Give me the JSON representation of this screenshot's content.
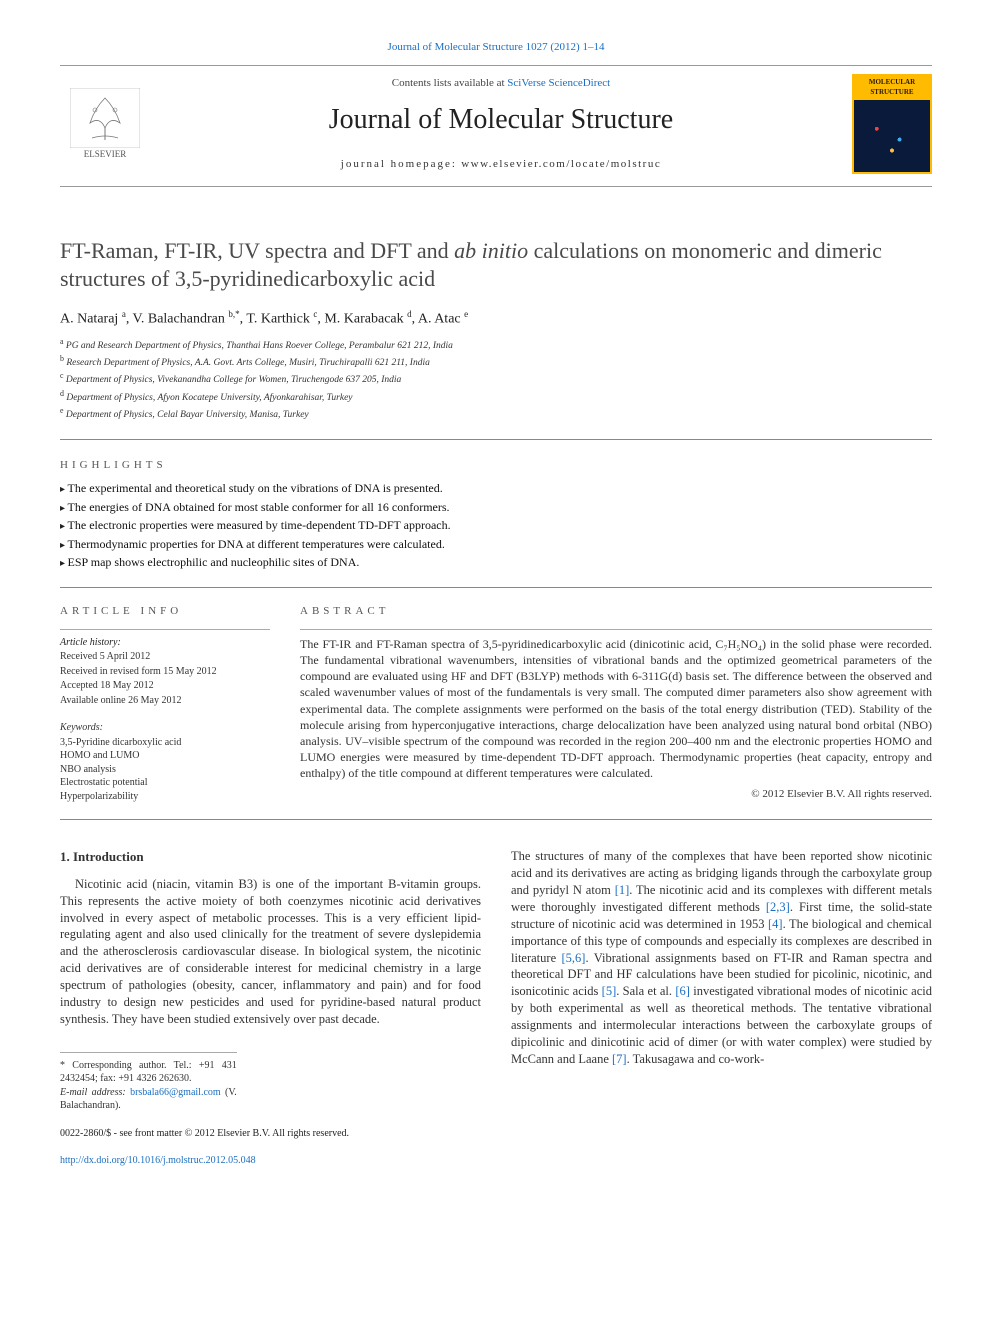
{
  "citation": {
    "text": "Journal of Molecular Structure 1027 (2012) 1–14",
    "href": "#"
  },
  "banner": {
    "contents_prefix": "Contents lists available at ",
    "contents_link_text": "SciVerse ScienceDirect",
    "journal_name": "Journal of Molecular Structure",
    "homepage_label": "journal homepage:",
    "homepage_url": "www.elsevier.com/locate/molstruc",
    "publisher_name": "ELSEVIER",
    "cover_label": "MOLECULAR STRUCTURE"
  },
  "paper": {
    "title_part1": "FT-Raman, FT-IR, UV spectra and DFT and ",
    "title_italic": "ab initio",
    "title_part2": " calculations on monomeric and dimeric structures of 3,5-pyridinedicarboxylic acid",
    "authors_html": "A. Nataraj <sup>a</sup>, V. Balachandran <sup>b,</sup><sup class=\"star\">*</sup>, T. Karthick <sup>c</sup>, M. Karabacak <sup>d</sup>, A. Atac <sup>e</sup>",
    "affiliations": [
      {
        "sup": "a",
        "text": "PG and Research Department of Physics, Thanthai Hans Roever College, Perambalur 621 212, India"
      },
      {
        "sup": "b",
        "text": "Research Department of Physics, A.A. Govt. Arts College, Musiri, Tiruchirapalli 621 211, India"
      },
      {
        "sup": "c",
        "text": "Department of Physics, Vivekanandha College for Women, Tiruchengode 637 205, India"
      },
      {
        "sup": "d",
        "text": "Department of Physics, Afyon Kocatepe University, Afyonkarahisar, Turkey"
      },
      {
        "sup": "e",
        "text": "Department of Physics, Celal Bayar University, Manisa, Turkey"
      }
    ]
  },
  "highlights": {
    "heading": "HIGHLIGHTS",
    "items": [
      "The experimental and theoretical study on the vibrations of DNA is presented.",
      "The energies of DNA obtained for most stable conformer for all 16 conformers.",
      "The electronic properties were measured by time-dependent TD-DFT approach.",
      "Thermodynamic properties for DNA at different temperatures were calculated.",
      "ESP map shows electrophilic and nucleophilic sites of DNA."
    ]
  },
  "article_info": {
    "heading": "ARTICLE INFO",
    "history_label": "Article history:",
    "history": [
      "Received 5 April 2012",
      "Received in revised form 15 May 2012",
      "Accepted 18 May 2012",
      "Available online 26 May 2012"
    ],
    "keywords_label": "Keywords:",
    "keywords": [
      "3,5-Pyridine dicarboxylic acid",
      "HOMO and LUMO",
      "NBO analysis",
      "Electrostatic potential",
      "Hyperpolarizability"
    ]
  },
  "abstract": {
    "heading": "ABSTRACT",
    "text": "The FT-IR and FT-Raman spectra of 3,5-pyridinedicarboxylic acid (dinicotinic acid, C₇H₅NO₄) in the solid phase were recorded. The fundamental vibrational wavenumbers, intensities of vibrational bands and the optimized geometrical parameters of the compound are evaluated using HF and DFT (B3LYP) methods with 6-311G(d) basis set. The difference between the observed and scaled wavenumber values of most of the fundamentals is very small. The computed dimer parameters also show agreement with experimental data. The complete assignments were performed on the basis of the total energy distribution (TED). Stability of the molecule arising from hyperconjugative interactions, charge delocalization have been analyzed using natural bond orbital (NBO) analysis. UV–visible spectrum of the compound was recorded in the region 200–400 nm and the electronic properties HOMO and LUMO energies were measured by time-dependent TD-DFT approach. Thermodynamic properties (heat capacity, entropy and enthalpy) of the title compound at different temperatures were calculated.",
    "copyright": "© 2012 Elsevier B.V. All rights reserved."
  },
  "introduction": {
    "heading": "1. Introduction",
    "col1": "Nicotinic acid (niacin, vitamin B3) is one of the important B-vitamin groups. This represents the active moiety of both coenzymes nicotinic acid derivatives involved in every aspect of metabolic processes. This is a very efficient lipid-regulating agent and also used clinically for the treatment of severe dyslepidemia and the atherosclerosis cardiovascular disease. In biological system, the nicotinic acid derivatives are of considerable interest for medicinal chemistry in a large spectrum of pathologies (obesity, cancer, inflammatory and pain) and for food industry to design new pesticides and used for pyridine-based natural product synthesis. They have been studied extensively over past decade.",
    "col2_pre": "The structures of many of the complexes that have been reported show nicotinic acid and its derivatives are acting as bridging ligands through the carboxylate group and pyridyl N atom ",
    "col2_ref1": "[1]",
    "col2_mid1": ". The nicotinic acid and its complexes with different metals were thoroughly investigated different methods ",
    "col2_ref23": "[2,3]",
    "col2_mid2": ". First time, the solid-state structure of nicotinic acid was determined in 1953 ",
    "col2_ref4": "[4]",
    "col2_mid3": ". The biological and chemical importance of this type of compounds and especially its complexes are described in literature ",
    "col2_ref56": "[5,6]",
    "col2_mid4": ". Vibrational assignments based on FT-IR and Raman spectra and theoretical DFT and HF calculations have been studied for picolinic, nicotinic, and isonicotinic acids ",
    "col2_ref5": "[5]",
    "col2_mid5": ". Sala et al. ",
    "col2_ref6": "[6]",
    "col2_mid6": " investigated vibrational modes of nicotinic acid by both experimental as well as theoretical methods. The tentative vibrational assignments and intermolecular interactions between the carboxylate groups of dipicolinic and dinicotinic acid of dimer (or with water complex) were studied by McCann and Laane ",
    "col2_ref7": "[7]",
    "col2_tail": ". Takusagawa and co-work-"
  },
  "footnote": {
    "corr": "* Corresponding author. Tel.: +91 431 2432454; fax: +91 4326 262630.",
    "email_label": "E-mail address: ",
    "email": "brsbala66@gmail.com",
    "email_suffix": " (V. Balachandran)."
  },
  "footer": {
    "issn_line": "0022-2860/$ - see front matter © 2012 Elsevier B.V. All rights reserved.",
    "doi": "http://dx.doi.org/10.1016/j.molstruc.2012.05.048"
  },
  "colors": {
    "link": "#1b6ec2",
    "text": "#333333",
    "heading": "#4a4a4a"
  }
}
